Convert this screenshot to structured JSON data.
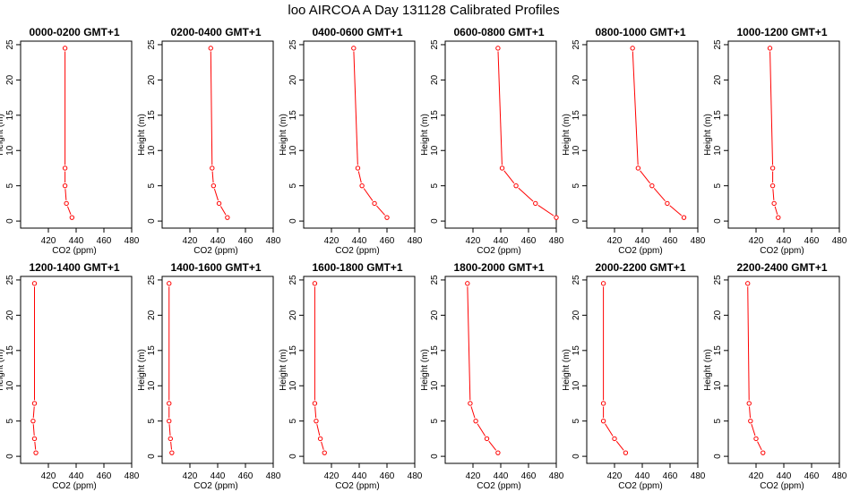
{
  "figure": {
    "title": "loo AIRCOA A  Day 131128  Calibrated Profiles"
  },
  "colors": {
    "series": "#ff0000",
    "axis": "#000000"
  },
  "chart_data": [
    {
      "type": "line",
      "title": "0000-0200 GMT+1",
      "xlabel": "CO2 (ppm)",
      "ylabel": "Height (m)",
      "xlim": [
        400,
        480
      ],
      "ylim": [
        -1,
        25.5
      ],
      "xticks": [
        "420",
        "440",
        "460",
        "480"
      ],
      "yticks": [
        "0",
        "5",
        "10",
        "15",
        "20",
        "25"
      ],
      "x": [
        437,
        433,
        432,
        432,
        432
      ],
      "y": [
        0.5,
        2.5,
        5,
        7.5,
        24.5
      ],
      "marker": "open-circle"
    },
    {
      "type": "line",
      "title": "0200-0400 GMT+1",
      "xlabel": "CO2 (ppm)",
      "ylabel": "Height (m)",
      "xlim": [
        400,
        480
      ],
      "ylim": [
        -1,
        25.5
      ],
      "xticks": [
        "420",
        "440",
        "460",
        "480"
      ],
      "yticks": [
        "0",
        "5",
        "10",
        "15",
        "20",
        "25"
      ],
      "x": [
        447,
        441,
        437,
        436,
        435
      ],
      "y": [
        0.5,
        2.5,
        5,
        7.5,
        24.5
      ],
      "marker": "open-circle"
    },
    {
      "type": "line",
      "title": "0400-0600 GMT+1",
      "xlabel": "CO2 (ppm)",
      "ylabel": "Height (m)",
      "xlim": [
        400,
        480
      ],
      "ylim": [
        -1,
        25.5
      ],
      "xticks": [
        "420",
        "440",
        "460",
        "480"
      ],
      "yticks": [
        "0",
        "5",
        "10",
        "15",
        "20",
        "25"
      ],
      "x": [
        460,
        451,
        442,
        439,
        436
      ],
      "y": [
        0.5,
        2.5,
        5,
        7.5,
        24.5
      ],
      "marker": "open-circle"
    },
    {
      "type": "line",
      "title": "0600-0800 GMT+1",
      "xlabel": "CO2 (ppm)",
      "ylabel": "Height (m)",
      "xlim": [
        400,
        480
      ],
      "ylim": [
        -1,
        25.5
      ],
      "xticks": [
        "420",
        "440",
        "460",
        "480"
      ],
      "yticks": [
        "0",
        "5",
        "10",
        "15",
        "20",
        "25"
      ],
      "x": [
        480,
        465,
        451,
        441,
        438
      ],
      "y": [
        0.5,
        2.5,
        5,
        7.5,
        24.5
      ],
      "marker": "open-circle"
    },
    {
      "type": "line",
      "title": "0800-1000 GMT+1",
      "xlabel": "CO2 (ppm)",
      "ylabel": "Height (m)",
      "xlim": [
        400,
        480
      ],
      "ylim": [
        -1,
        25.5
      ],
      "xticks": [
        "420",
        "440",
        "460",
        "480"
      ],
      "yticks": [
        "0",
        "5",
        "10",
        "15",
        "20",
        "25"
      ],
      "x": [
        470,
        458,
        447,
        437,
        433
      ],
      "y": [
        0.5,
        2.5,
        5,
        7.5,
        24.5
      ],
      "marker": "open-circle"
    },
    {
      "type": "line",
      "title": "1000-1200 GMT+1",
      "xlabel": "CO2 (ppm)",
      "ylabel": "Height (m)",
      "xlim": [
        400,
        480
      ],
      "ylim": [
        -1,
        25.5
      ],
      "xticks": [
        "420",
        "440",
        "460",
        "480"
      ],
      "yticks": [
        "0",
        "5",
        "10",
        "15",
        "20",
        "25"
      ],
      "x": [
        436,
        433,
        432,
        432,
        430
      ],
      "y": [
        0.5,
        2.5,
        5,
        7.5,
        24.5
      ],
      "marker": "open-circle"
    },
    {
      "type": "line",
      "title": "1200-1400 GMT+1",
      "xlabel": "CO2 (ppm)",
      "ylabel": "Height (m)",
      "xlim": [
        400,
        480
      ],
      "ylim": [
        -1,
        25.5
      ],
      "xticks": [
        "420",
        "440",
        "460",
        "480"
      ],
      "yticks": [
        "0",
        "5",
        "10",
        "15",
        "20",
        "25"
      ],
      "x": [
        411,
        410,
        409,
        410,
        410
      ],
      "y": [
        0.5,
        2.5,
        5,
        7.5,
        24.5
      ],
      "marker": "open-circle"
    },
    {
      "type": "line",
      "title": "1400-1600 GMT+1",
      "xlabel": "CO2 (ppm)",
      "ylabel": "Height (m)",
      "xlim": [
        400,
        480
      ],
      "ylim": [
        -1,
        25.5
      ],
      "xticks": [
        "420",
        "440",
        "460",
        "480"
      ],
      "yticks": [
        "0",
        "5",
        "10",
        "15",
        "20",
        "25"
      ],
      "x": [
        407,
        406,
        405,
        405,
        405
      ],
      "y": [
        0.5,
        2.5,
        5,
        7.5,
        24.5
      ],
      "marker": "open-circle"
    },
    {
      "type": "line",
      "title": "1600-1800 GMT+1",
      "xlabel": "CO2 (ppm)",
      "ylabel": "Height (m)",
      "xlim": [
        400,
        480
      ],
      "ylim": [
        -1,
        25.5
      ],
      "xticks": [
        "420",
        "440",
        "460",
        "480"
      ],
      "yticks": [
        "0",
        "5",
        "10",
        "15",
        "20",
        "25"
      ],
      "x": [
        415,
        412,
        409,
        408,
        408
      ],
      "y": [
        0.5,
        2.5,
        5,
        7.5,
        24.5
      ],
      "marker": "open-circle"
    },
    {
      "type": "line",
      "title": "1800-2000 GMT+1",
      "xlabel": "CO2 (ppm)",
      "ylabel": "Height (m)",
      "xlim": [
        400,
        480
      ],
      "ylim": [
        -1,
        25.5
      ],
      "xticks": [
        "420",
        "440",
        "460",
        "480"
      ],
      "yticks": [
        "0",
        "5",
        "10",
        "15",
        "20",
        "25"
      ],
      "x": [
        438,
        430,
        422,
        418,
        416
      ],
      "y": [
        0.5,
        2.5,
        5,
        7.5,
        24.5
      ],
      "marker": "open-circle"
    },
    {
      "type": "line",
      "title": "2000-2200 GMT+1",
      "xlabel": "CO2 (ppm)",
      "ylabel": "Height (m)",
      "xlim": [
        400,
        480
      ],
      "ylim": [
        -1,
        25.5
      ],
      "xticks": [
        "420",
        "440",
        "460",
        "480"
      ],
      "yticks": [
        "0",
        "5",
        "10",
        "15",
        "20",
        "25"
      ],
      "x": [
        428,
        420,
        412,
        412,
        412
      ],
      "y": [
        0.5,
        2.5,
        5,
        7.5,
        24.5
      ],
      "marker": "open-circle"
    },
    {
      "type": "line",
      "title": "2200-2400 GMT+1",
      "xlabel": "CO2 (ppm)",
      "ylabel": "Height (m)",
      "xlim": [
        400,
        480
      ],
      "ylim": [
        -1,
        25.5
      ],
      "xticks": [
        "420",
        "440",
        "460",
        "480"
      ],
      "yticks": [
        "0",
        "5",
        "10",
        "15",
        "20",
        "25"
      ],
      "x": [
        425,
        420,
        416,
        415,
        414
      ],
      "y": [
        0.5,
        2.5,
        5,
        7.5,
        24.5
      ],
      "marker": "open-circle"
    }
  ]
}
